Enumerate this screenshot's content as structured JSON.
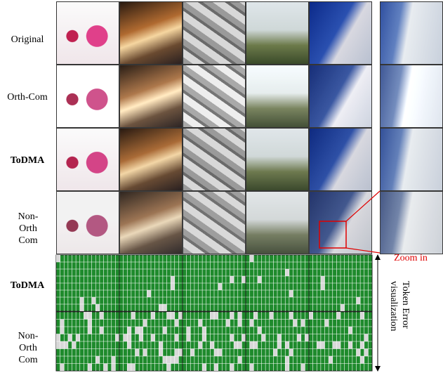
{
  "row_labels": [
    "Original",
    "Orth-Com",
    "ToDMA",
    "Non-Orth Com"
  ],
  "grid_labels": [
    "ToDMA",
    "Non-Orth Com"
  ],
  "zoom_label": "Zoom in",
  "side_label": [
    "Token Error",
    "visualization"
  ]
}
